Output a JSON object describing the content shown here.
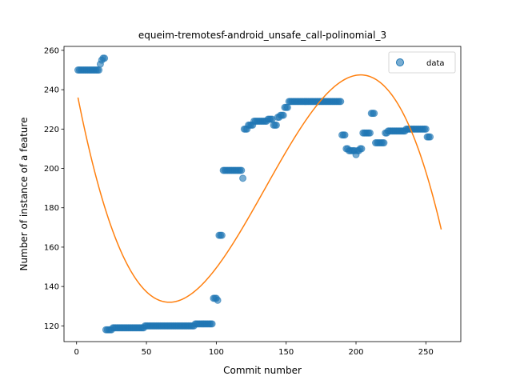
{
  "chart_data": {
    "type": "scatter",
    "title": "equeim-tremotesf-android_unsafe_call-polinomial_3",
    "xlabel": "Commit number",
    "ylabel": "Number of instance of a feature",
    "xlim": [
      -9,
      275
    ],
    "ylim": [
      112,
      262
    ],
    "xticks": [
      0,
      50,
      100,
      150,
      200,
      250
    ],
    "yticks": [
      120,
      140,
      160,
      180,
      200,
      220,
      240,
      260
    ],
    "legend": {
      "label": "data",
      "placement": "top-right"
    },
    "colors": {
      "points": "#1f77b4",
      "fit": "#ff7f0e"
    },
    "series": [
      {
        "name": "data",
        "kind": "scatter",
        "points": [
          [
            1,
            250
          ],
          [
            2,
            250
          ],
          [
            3,
            250
          ],
          [
            4,
            250
          ],
          [
            5,
            250
          ],
          [
            6,
            250
          ],
          [
            7,
            250
          ],
          [
            8,
            250
          ],
          [
            9,
            250
          ],
          [
            10,
            250
          ],
          [
            11,
            250
          ],
          [
            12,
            250
          ],
          [
            13,
            250
          ],
          [
            14,
            250
          ],
          [
            15,
            250
          ],
          [
            16,
            250
          ],
          [
            17,
            253
          ],
          [
            18,
            255
          ],
          [
            19,
            256
          ],
          [
            20,
            256
          ],
          [
            21,
            118
          ],
          [
            22,
            118
          ],
          [
            23,
            118
          ],
          [
            24,
            118
          ],
          [
            25,
            118
          ],
          [
            26,
            119
          ],
          [
            27,
            119
          ],
          [
            28,
            119
          ],
          [
            29,
            119
          ],
          [
            30,
            119
          ],
          [
            31,
            119
          ],
          [
            32,
            119
          ],
          [
            33,
            119
          ],
          [
            34,
            119
          ],
          [
            35,
            119
          ],
          [
            36,
            119
          ],
          [
            37,
            119
          ],
          [
            38,
            119
          ],
          [
            39,
            119
          ],
          [
            40,
            119
          ],
          [
            41,
            119
          ],
          [
            42,
            119
          ],
          [
            43,
            119
          ],
          [
            44,
            119
          ],
          [
            45,
            119
          ],
          [
            46,
            119
          ],
          [
            47,
            119
          ],
          [
            48,
            119
          ],
          [
            49,
            120
          ],
          [
            50,
            120
          ],
          [
            51,
            120
          ],
          [
            52,
            120
          ],
          [
            53,
            120
          ],
          [
            54,
            120
          ],
          [
            55,
            120
          ],
          [
            56,
            120
          ],
          [
            57,
            120
          ],
          [
            58,
            120
          ],
          [
            59,
            120
          ],
          [
            60,
            120
          ],
          [
            61,
            120
          ],
          [
            62,
            120
          ],
          [
            63,
            120
          ],
          [
            64,
            120
          ],
          [
            65,
            120
          ],
          [
            66,
            120
          ],
          [
            67,
            120
          ],
          [
            68,
            120
          ],
          [
            69,
            120
          ],
          [
            70,
            120
          ],
          [
            71,
            120
          ],
          [
            72,
            120
          ],
          [
            73,
            120
          ],
          [
            74,
            120
          ],
          [
            75,
            120
          ],
          [
            76,
            120
          ],
          [
            77,
            120
          ],
          [
            78,
            120
          ],
          [
            79,
            120
          ],
          [
            80,
            120
          ],
          [
            81,
            120
          ],
          [
            82,
            120
          ],
          [
            83,
            120
          ],
          [
            84,
            120
          ],
          [
            85,
            121
          ],
          [
            86,
            121
          ],
          [
            87,
            121
          ],
          [
            88,
            121
          ],
          [
            89,
            121
          ],
          [
            90,
            121
          ],
          [
            91,
            121
          ],
          [
            92,
            121
          ],
          [
            93,
            121
          ],
          [
            94,
            121
          ],
          [
            95,
            121
          ],
          [
            96,
            121
          ],
          [
            97,
            121
          ],
          [
            98,
            134
          ],
          [
            99,
            134
          ],
          [
            100,
            134
          ],
          [
            101,
            133
          ],
          [
            102,
            166
          ],
          [
            103,
            166
          ],
          [
            104,
            166
          ],
          [
            105,
            199
          ],
          [
            106,
            199
          ],
          [
            107,
            199
          ],
          [
            108,
            199
          ],
          [
            109,
            199
          ],
          [
            110,
            199
          ],
          [
            111,
            199
          ],
          [
            112,
            199
          ],
          [
            113,
            199
          ],
          [
            114,
            199
          ],
          [
            115,
            199
          ],
          [
            116,
            199
          ],
          [
            117,
            199
          ],
          [
            118,
            199
          ],
          [
            119,
            195
          ],
          [
            120,
            220
          ],
          [
            121,
            220
          ],
          [
            122,
            220
          ],
          [
            123,
            222
          ],
          [
            124,
            222
          ],
          [
            125,
            222
          ],
          [
            126,
            222
          ],
          [
            127,
            224
          ],
          [
            128,
            224
          ],
          [
            129,
            224
          ],
          [
            130,
            224
          ],
          [
            131,
            224
          ],
          [
            132,
            224
          ],
          [
            133,
            224
          ],
          [
            134,
            224
          ],
          [
            135,
            224
          ],
          [
            136,
            224
          ],
          [
            137,
            225
          ],
          [
            138,
            225
          ],
          [
            139,
            225
          ],
          [
            140,
            225
          ],
          [
            141,
            222
          ],
          [
            142,
            222
          ],
          [
            143,
            222
          ],
          [
            144,
            226
          ],
          [
            145,
            226
          ],
          [
            146,
            227
          ],
          [
            147,
            227
          ],
          [
            148,
            227
          ],
          [
            149,
            231
          ],
          [
            150,
            231
          ],
          [
            151,
            231
          ],
          [
            152,
            234
          ],
          [
            153,
            234
          ],
          [
            154,
            234
          ],
          [
            155,
            234
          ],
          [
            156,
            234
          ],
          [
            157,
            234
          ],
          [
            158,
            234
          ],
          [
            159,
            234
          ],
          [
            160,
            234
          ],
          [
            161,
            234
          ],
          [
            162,
            234
          ],
          [
            163,
            234
          ],
          [
            164,
            234
          ],
          [
            165,
            234
          ],
          [
            166,
            234
          ],
          [
            167,
            234
          ],
          [
            168,
            234
          ],
          [
            169,
            234
          ],
          [
            170,
            234
          ],
          [
            171,
            234
          ],
          [
            172,
            234
          ],
          [
            173,
            234
          ],
          [
            174,
            234
          ],
          [
            175,
            234
          ],
          [
            176,
            234
          ],
          [
            177,
            234
          ],
          [
            178,
            234
          ],
          [
            179,
            234
          ],
          [
            180,
            234
          ],
          [
            181,
            234
          ],
          [
            182,
            234
          ],
          [
            183,
            234
          ],
          [
            184,
            234
          ],
          [
            185,
            234
          ],
          [
            186,
            234
          ],
          [
            187,
            234
          ],
          [
            188,
            234
          ],
          [
            189,
            234
          ],
          [
            190,
            217
          ],
          [
            191,
            217
          ],
          [
            192,
            217
          ],
          [
            193,
            210
          ],
          [
            194,
            210
          ],
          [
            195,
            209
          ],
          [
            196,
            209
          ],
          [
            197,
            209
          ],
          [
            198,
            209
          ],
          [
            199,
            209
          ],
          [
            200,
            207
          ],
          [
            201,
            209
          ],
          [
            202,
            209
          ],
          [
            203,
            210
          ],
          [
            204,
            210
          ],
          [
            205,
            218
          ],
          [
            206,
            218
          ],
          [
            207,
            218
          ],
          [
            208,
            218
          ],
          [
            209,
            218
          ],
          [
            210,
            218
          ],
          [
            211,
            228
          ],
          [
            212,
            228
          ],
          [
            213,
            228
          ],
          [
            214,
            213
          ],
          [
            215,
            213
          ],
          [
            216,
            213
          ],
          [
            217,
            213
          ],
          [
            218,
            213
          ],
          [
            219,
            213
          ],
          [
            220,
            213
          ],
          [
            221,
            218
          ],
          [
            222,
            218
          ],
          [
            223,
            219
          ],
          [
            224,
            219
          ],
          [
            225,
            219
          ],
          [
            226,
            219
          ],
          [
            227,
            219
          ],
          [
            228,
            219
          ],
          [
            229,
            219
          ],
          [
            230,
            219
          ],
          [
            231,
            219
          ],
          [
            232,
            219
          ],
          [
            233,
            219
          ],
          [
            234,
            219
          ],
          [
            235,
            219
          ],
          [
            236,
            220
          ],
          [
            237,
            220
          ],
          [
            238,
            220
          ],
          [
            239,
            220
          ],
          [
            240,
            220
          ],
          [
            241,
            220
          ],
          [
            242,
            220
          ],
          [
            243,
            220
          ],
          [
            244,
            220
          ],
          [
            245,
            220
          ],
          [
            246,
            220
          ],
          [
            247,
            220
          ],
          [
            248,
            220
          ],
          [
            249,
            220
          ],
          [
            250,
            220
          ],
          [
            251,
            216
          ],
          [
            252,
            216
          ],
          [
            253,
            216
          ]
        ]
      },
      {
        "kind": "line",
        "x_range": [
          1,
          261
        ],
        "fit": {
          "xs": [
            1,
            66,
            204,
            261
          ],
          "ys": [
            236,
            132,
            247.5,
            169
          ]
        }
      }
    ]
  }
}
